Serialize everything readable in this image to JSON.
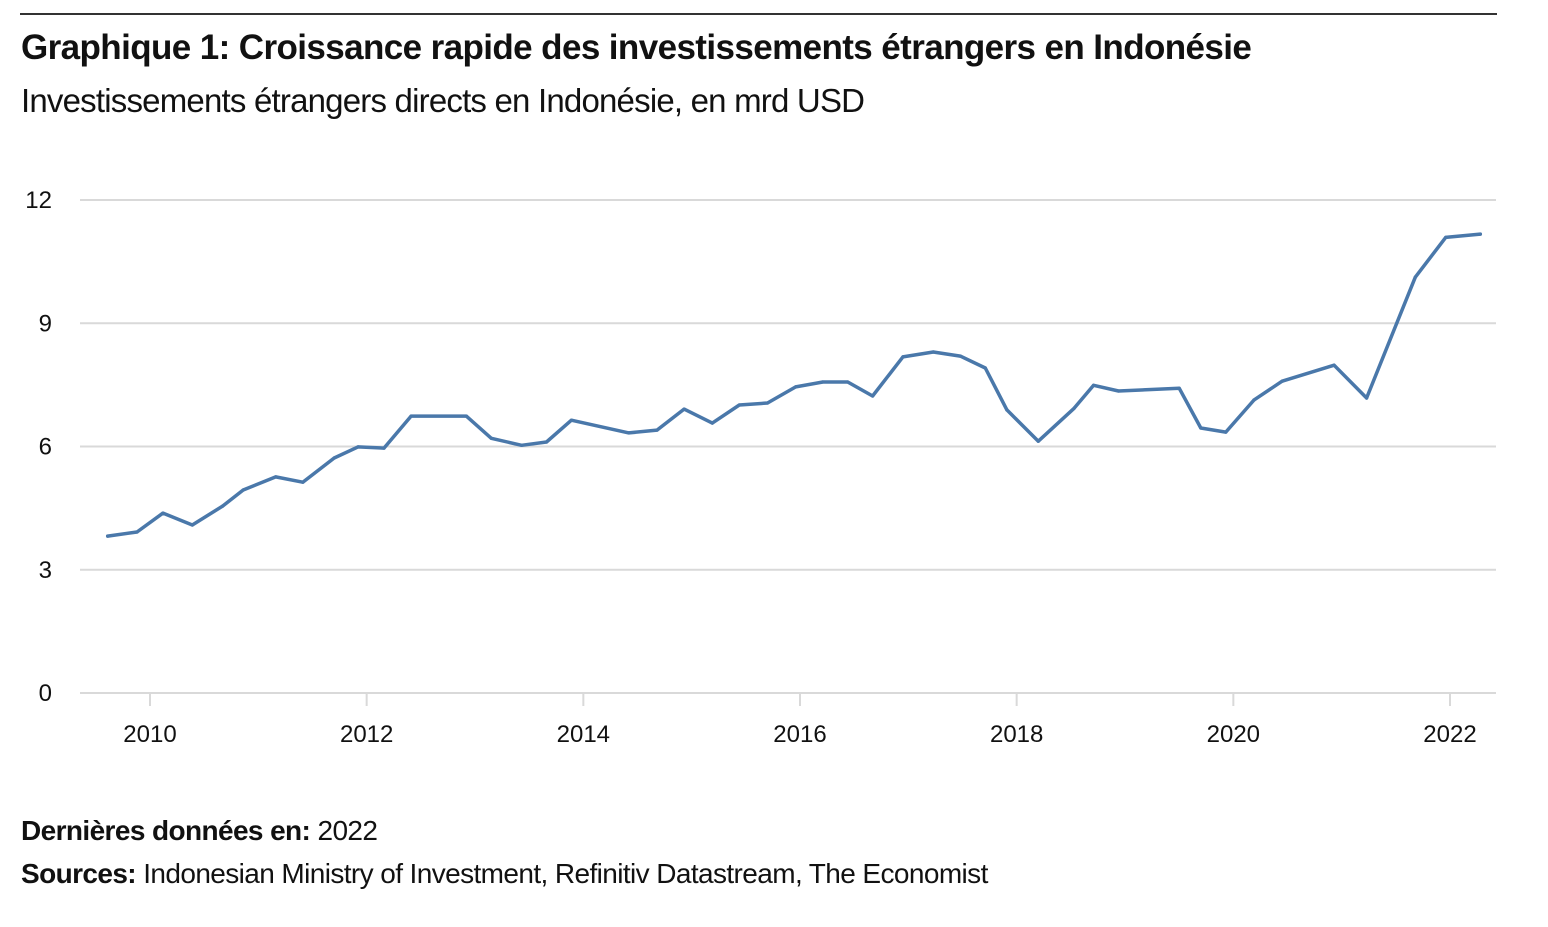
{
  "header": {
    "title": "Graphique 1: Croissance rapide des investissements étrangers en Indonésie",
    "subtitle": "Investissements étrangers directs en Indonésie, en mrd USD"
  },
  "footer": {
    "latest_label": "Dernières données en:",
    "latest_value": "2022",
    "sources_label": "Sources:",
    "sources_value": "Indonesian Ministry of Investment, Refinitiv Datastream, The Economist"
  },
  "colors": {
    "line": "#4a78aa",
    "grid": "#d9d9d9",
    "rule": "#333333"
  },
  "chart_data": {
    "type": "line",
    "title": "Graphique 1: Croissance rapide des investissements étrangers en Indonésie",
    "subtitle": "Investissements étrangers directs en Indonésie, en mrd USD",
    "xlabel": "",
    "ylabel": "",
    "xlim": [
      2009.45,
      2023.05
    ],
    "ylim": [
      0,
      12
    ],
    "yticks": [
      0,
      3,
      6,
      9,
      12
    ],
    "ytick_labels": [
      "0",
      "3",
      "6",
      "9",
      "12"
    ],
    "xticks": [
      2010,
      2012,
      2014,
      2016,
      2018,
      2020,
      2022
    ],
    "xtick_labels": [
      "2010",
      "2012",
      "2014",
      "2016",
      "2018",
      "2020",
      "2022"
    ],
    "grid": true,
    "legend": "none",
    "series": [
      {
        "name": "Investissements étrangers directs",
        "x": [
          2009.61,
          2009.88,
          2010.12,
          2010.39,
          2010.67,
          2010.86,
          2011.16,
          2011.41,
          2011.7,
          2011.92,
          2012.16,
          2012.41,
          2012.92,
          2013.15,
          2013.43,
          2013.66,
          2013.89,
          2014.42,
          2014.68,
          2014.93,
          2015.19,
          2015.44,
          2015.7,
          2015.96,
          2016.21,
          2016.44,
          2016.67,
          2016.95,
          2017.23,
          2017.48,
          2017.71,
          2017.91,
          2018.2,
          2018.53,
          2018.71,
          2018.94,
          2019.5,
          2019.7,
          2019.93,
          2020.19,
          2020.45,
          2020.93,
          2021.23,
          2021.68,
          2021.96,
          2022.28
        ],
        "values": [
          3.82,
          3.92,
          4.38,
          4.09,
          4.55,
          4.94,
          5.26,
          5.13,
          5.72,
          5.99,
          5.96,
          6.74,
          6.74,
          6.2,
          6.03,
          6.11,
          6.64,
          6.33,
          6.4,
          6.91,
          6.57,
          7.01,
          7.06,
          7.45,
          7.57,
          7.57,
          7.23,
          8.18,
          8.3,
          8.2,
          7.91,
          6.89,
          6.13,
          6.93,
          7.49,
          7.35,
          7.42,
          6.45,
          6.35,
          7.13,
          7.59,
          7.98,
          7.18,
          10.12,
          11.09,
          11.17
        ]
      }
    ]
  }
}
